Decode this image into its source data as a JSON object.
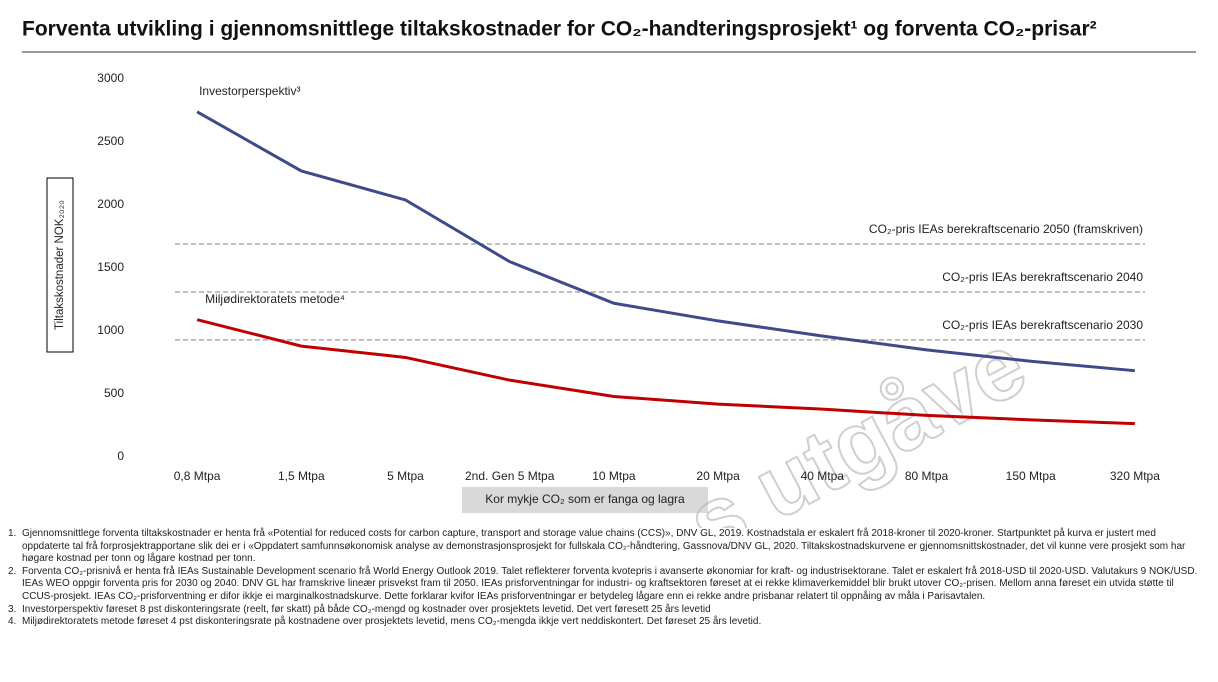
{
  "chart_data": {
    "type": "line",
    "title": "Forventa utvikling i gjennomsnittlege tiltakskostnader for CO₂-handteringsprosjekt¹ og forventa CO₂-prisar²",
    "ylabel": "Tiltakskostnader NOK₂₀₂₀",
    "xlabel": "Kor mykje CO₂ som er fanga og lagra",
    "categories": [
      "0,8 Mtpa",
      "1,5 Mtpa",
      "5 Mtpa",
      "2nd. Gen 5 Mtpa",
      "10 Mtpa",
      "20 Mtpa",
      "40 Mtpa",
      "80 Mtpa",
      "150 Mtpa",
      "320 Mtpa"
    ],
    "series": [
      {
        "name": "Investorperspektiv³",
        "color": "#3f4a8a",
        "values": [
          2740,
          2270,
          2040,
          1550,
          1220,
          1080,
          960,
          850,
          760,
          685
        ]
      },
      {
        "name": "Miljødirektoratets metode⁴",
        "color": "#c00000",
        "values": [
          1090,
          880,
          790,
          610,
          480,
          420,
          380,
          330,
          295,
          265
        ]
      }
    ],
    "reference_lines": [
      {
        "label": "CO₂-pris IEAs berekraftscenario 2050 (framskriven)",
        "value": 1690,
        "color": "#aaaaaa"
      },
      {
        "label": "CO₂-pris IEAs berekraftscenario 2040",
        "value": 1310,
        "color": "#aaaaaa"
      },
      {
        "label": "CO₂-pris IEAs berekraftscenario 2030",
        "value": 930,
        "color": "#aaaaaa"
      }
    ],
    "ylim": [
      0,
      3000
    ],
    "yticks": [
      0,
      500,
      1000,
      1500,
      2000,
      2500,
      3000
    ],
    "grid": false,
    "watermark": "s utgåve"
  },
  "footnotes": [
    {
      "number": "1.",
      "text": "Gjennomsnittlege forventa tiltakskostnader er henta frå «Potential for reduced costs for carbon capture, transport and storage value chains (CCS)», DNV GL, 2019.  Kostnadstala er eskalert frå 2018-kroner til 2020-kroner.  Startpunktet på kurva er justert med oppdaterte tal frå forprosjektrapportane slik dei er i «Oppdatert samfunnsøkonomisk analyse av demonstrasjonsprosjekt for fullskala CO₂-håndtering, Gassnova/DNV GL, 2020.  Tiltakskostnadskurvene er gjennomsnittskostnader, det vil kunne vere prosjekt som har høgare kostnad per tonn og lågare kostnad per tonn."
    },
    {
      "number": "2.",
      "text": "Forventa CO₂-prisnivå er henta frå IEAs Sustainable Development scenario frå World Energy Outlook 2019. Talet reflekterer forventa kvotepris i avanserte økonomiar for kraft- og industrisektorane. Talet er eskalert frå 2018-USD til 2020-USD.  Valutakurs 9 NOK/USD. IEAs WEO oppgir forventa pris for 2030 og 2040.  DNV GL har framskrive lineær prisvekst fram til 2050.  IEAs prisforventningar for industri- og kraftsektoren føreset at ei rekke klimaverkemiddel blir brukt utover CO₂-prisen. Mellom anna føreset ein utvida støtte til CCUS-prosjekt. IEAs CO₂-prisforventning er difor ikkje ei marginalkostnadskurve. Dette forklarar kvifor IEAs prisforventningar er betydeleg lågare enn ei rekke andre prisbanar relatert til oppnåing av måla i Parisavtalen."
    },
    {
      "number": "3.",
      "text": "Investorperspektiv føreset 8 pst diskonteringsrate (reelt, før skatt) på både CO₂-mengd og kostnader over prosjektets levetid. Det vert føresett 25 års levetid"
    },
    {
      "number": "4.",
      "text": "Miljødirektoratets metode føreset 4 pst diskonteringsrate på kostnadene over prosjektets levetid, mens CO₂-mengda ikkje vert neddiskontert. Det føreset 25 års levetid."
    }
  ]
}
